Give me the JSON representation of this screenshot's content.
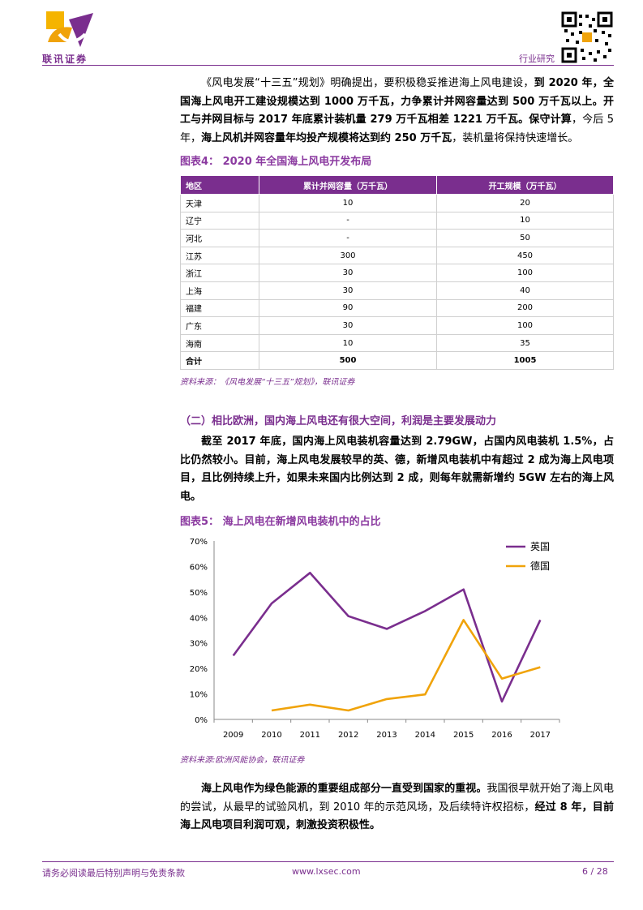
{
  "header": {
    "logo_text": "联讯证券",
    "category": "行业研究"
  },
  "intro_paragraph": {
    "p1": "《风电发展“十三五”规划》明确提出，要积极稳妥推进海上风电建设，",
    "b1": "到 2020 年，全国海上风电开工建设规模达到 1000 万千瓦，力争累计并网容量达到 500 万千瓦以上。开工与并网目标与 2017 年底累计装机量 279 万千瓦相差 1221 万千瓦。保守计算",
    "p2": "，今后 5 年，",
    "b2": "海上风机并网容量年均投产规模将达到约 250 万千瓦",
    "p3": "，装机量将保持快速增长。"
  },
  "figure4": {
    "title": "图表4：  2020 年全国海上风电开发布局",
    "columns": [
      "地区",
      "累计并网容量（万千瓦）",
      "开工规模（万千瓦）"
    ],
    "rows": [
      [
        "天津",
        "10",
        "20"
      ],
      [
        "辽宁",
        "-",
        "10"
      ],
      [
        "河北",
        "-",
        "50"
      ],
      [
        "江苏",
        "300",
        "450"
      ],
      [
        "浙江",
        "30",
        "100"
      ],
      [
        "上海",
        "30",
        "40"
      ],
      [
        "福建",
        "90",
        "200"
      ],
      [
        "广东",
        "30",
        "100"
      ],
      [
        "海南",
        "10",
        "35"
      ]
    ],
    "total": [
      "合计",
      "500",
      "1005"
    ],
    "source": "资料来源：《风电发展“十三五”规划》，联讯证券"
  },
  "section2": {
    "heading": "（二）相比欧洲，国内海上风电还有很大空间，利润是主要发展动力",
    "paragraph": "截至 2017 年底，国内海上风电装机容量达到 2.79GW，占国内风电装机 1.5%，占比仍然较小。目前，海上风电发展较早的英、德，新增风电装机中有超过 2 成为海上风电项目，且比例持续上升，如果未来国内比例达到 2 成，则每年就需新增约 5GW 左右的海上风电。"
  },
  "figure5": {
    "title": "图表5：  海上风电在新增风电装机中的占比",
    "source": "资料来源:欧洲风能协会，联讯证券"
  },
  "chart_data": {
    "type": "line",
    "title": "",
    "x": [
      "2009",
      "2010",
      "2011",
      "2012",
      "2013",
      "2014",
      "2015",
      "2016",
      "2017"
    ],
    "series": [
      {
        "name": "英国",
        "color": "#7a2e8e",
        "values": [
          0.25,
          0.455,
          0.575,
          0.405,
          0.355,
          0.425,
          0.51,
          0.07,
          0.39
        ]
      },
      {
        "name": "德国",
        "color": "#f0a30a",
        "values": [
          null,
          0.035,
          0.058,
          0.035,
          0.08,
          0.098,
          0.39,
          0.16,
          0.205
        ]
      }
    ],
    "yticks": [
      "0%",
      "10%",
      "20%",
      "30%",
      "40%",
      "50%",
      "60%",
      "70%"
    ],
    "ylim": [
      0,
      0.7
    ],
    "legend": "top-right",
    "grid": false
  },
  "closing_paragraph": {
    "b1": "海上风电作为绿色能源的重要组成部分一直受到国家的重视。",
    "p1": "我国很早就开始了海上风电的尝试，从最早的试验风机，到 2010 年的示范风场，及后续特许权招标，",
    "b2": "经过 8 年，目前海上风电项目利润可观，刺激投资积极性。"
  },
  "footer": {
    "disclaimer": "请务必阅读最后特别声明与免责条款",
    "website": "www.lxsec.com",
    "page": "6 / 28"
  }
}
